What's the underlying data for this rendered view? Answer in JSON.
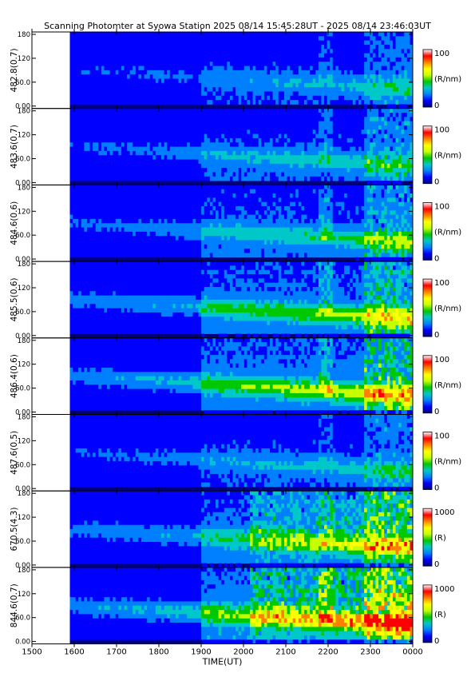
{
  "title": "Scanning Photomter at Syowa Station 2025 08/14 15:45:28UT - 2025 08/14 23:46:03UT",
  "chart_data": {
    "type": "heatmap",
    "xlabel": "TIME(UT)",
    "x_ticks": [
      "1500",
      "1600",
      "1700",
      "1800",
      "1900",
      "2000",
      "2100",
      "2200",
      "2300",
      "0000"
    ],
    "x_range_ut": [
      "1500",
      "0000"
    ],
    "data_start_ut": "15:45:28",
    "data_end_ut": "23:46:03",
    "y_range": [
      0,
      180
    ],
    "y_ticks": [
      "0.00",
      "60.0",
      "120",
      "180"
    ],
    "panels": [
      {
        "channel": "482.8(0.7)",
        "colorbar_max": "100",
        "colorbar_min": "0",
        "units": "(R/nm)",
        "brightness": 0.35
      },
      {
        "channel": "483.6(0.7)",
        "colorbar_max": "100",
        "colorbar_min": "0",
        "units": "(R/nm)",
        "brightness": 0.45
      },
      {
        "channel": "484.6(0.6)",
        "colorbar_max": "100",
        "colorbar_min": "0",
        "units": "(R/nm)",
        "brightness": 0.55
      },
      {
        "channel": "485.5(0.6)",
        "colorbar_max": "100",
        "colorbar_min": "0",
        "units": "(R/nm)",
        "brightness": 0.75
      },
      {
        "channel": "486.4(0.6)",
        "colorbar_max": "100",
        "colorbar_min": "0",
        "units": "(R/nm)",
        "brightness": 0.85
      },
      {
        "channel": "487.6(0.5)",
        "colorbar_max": "100",
        "colorbar_min": "0",
        "units": "(R/nm)",
        "brightness": 0.4
      },
      {
        "channel": "670.5(4.3)",
        "colorbar_max": "1000",
        "colorbar_min": "0",
        "units": "(R)",
        "brightness": 0.7
      },
      {
        "channel": "844.6(0.7)",
        "colorbar_max": "1000",
        "colorbar_min": "0",
        "units": "(R)",
        "brightness": 0.95
      }
    ],
    "colormap": [
      "#00007f",
      "#0000ff",
      "#0080ff",
      "#00c8c8",
      "#00c800",
      "#c8ff00",
      "#ffff00",
      "#ff8000",
      "#ff0000",
      "#ffffff"
    ],
    "grid": false
  }
}
